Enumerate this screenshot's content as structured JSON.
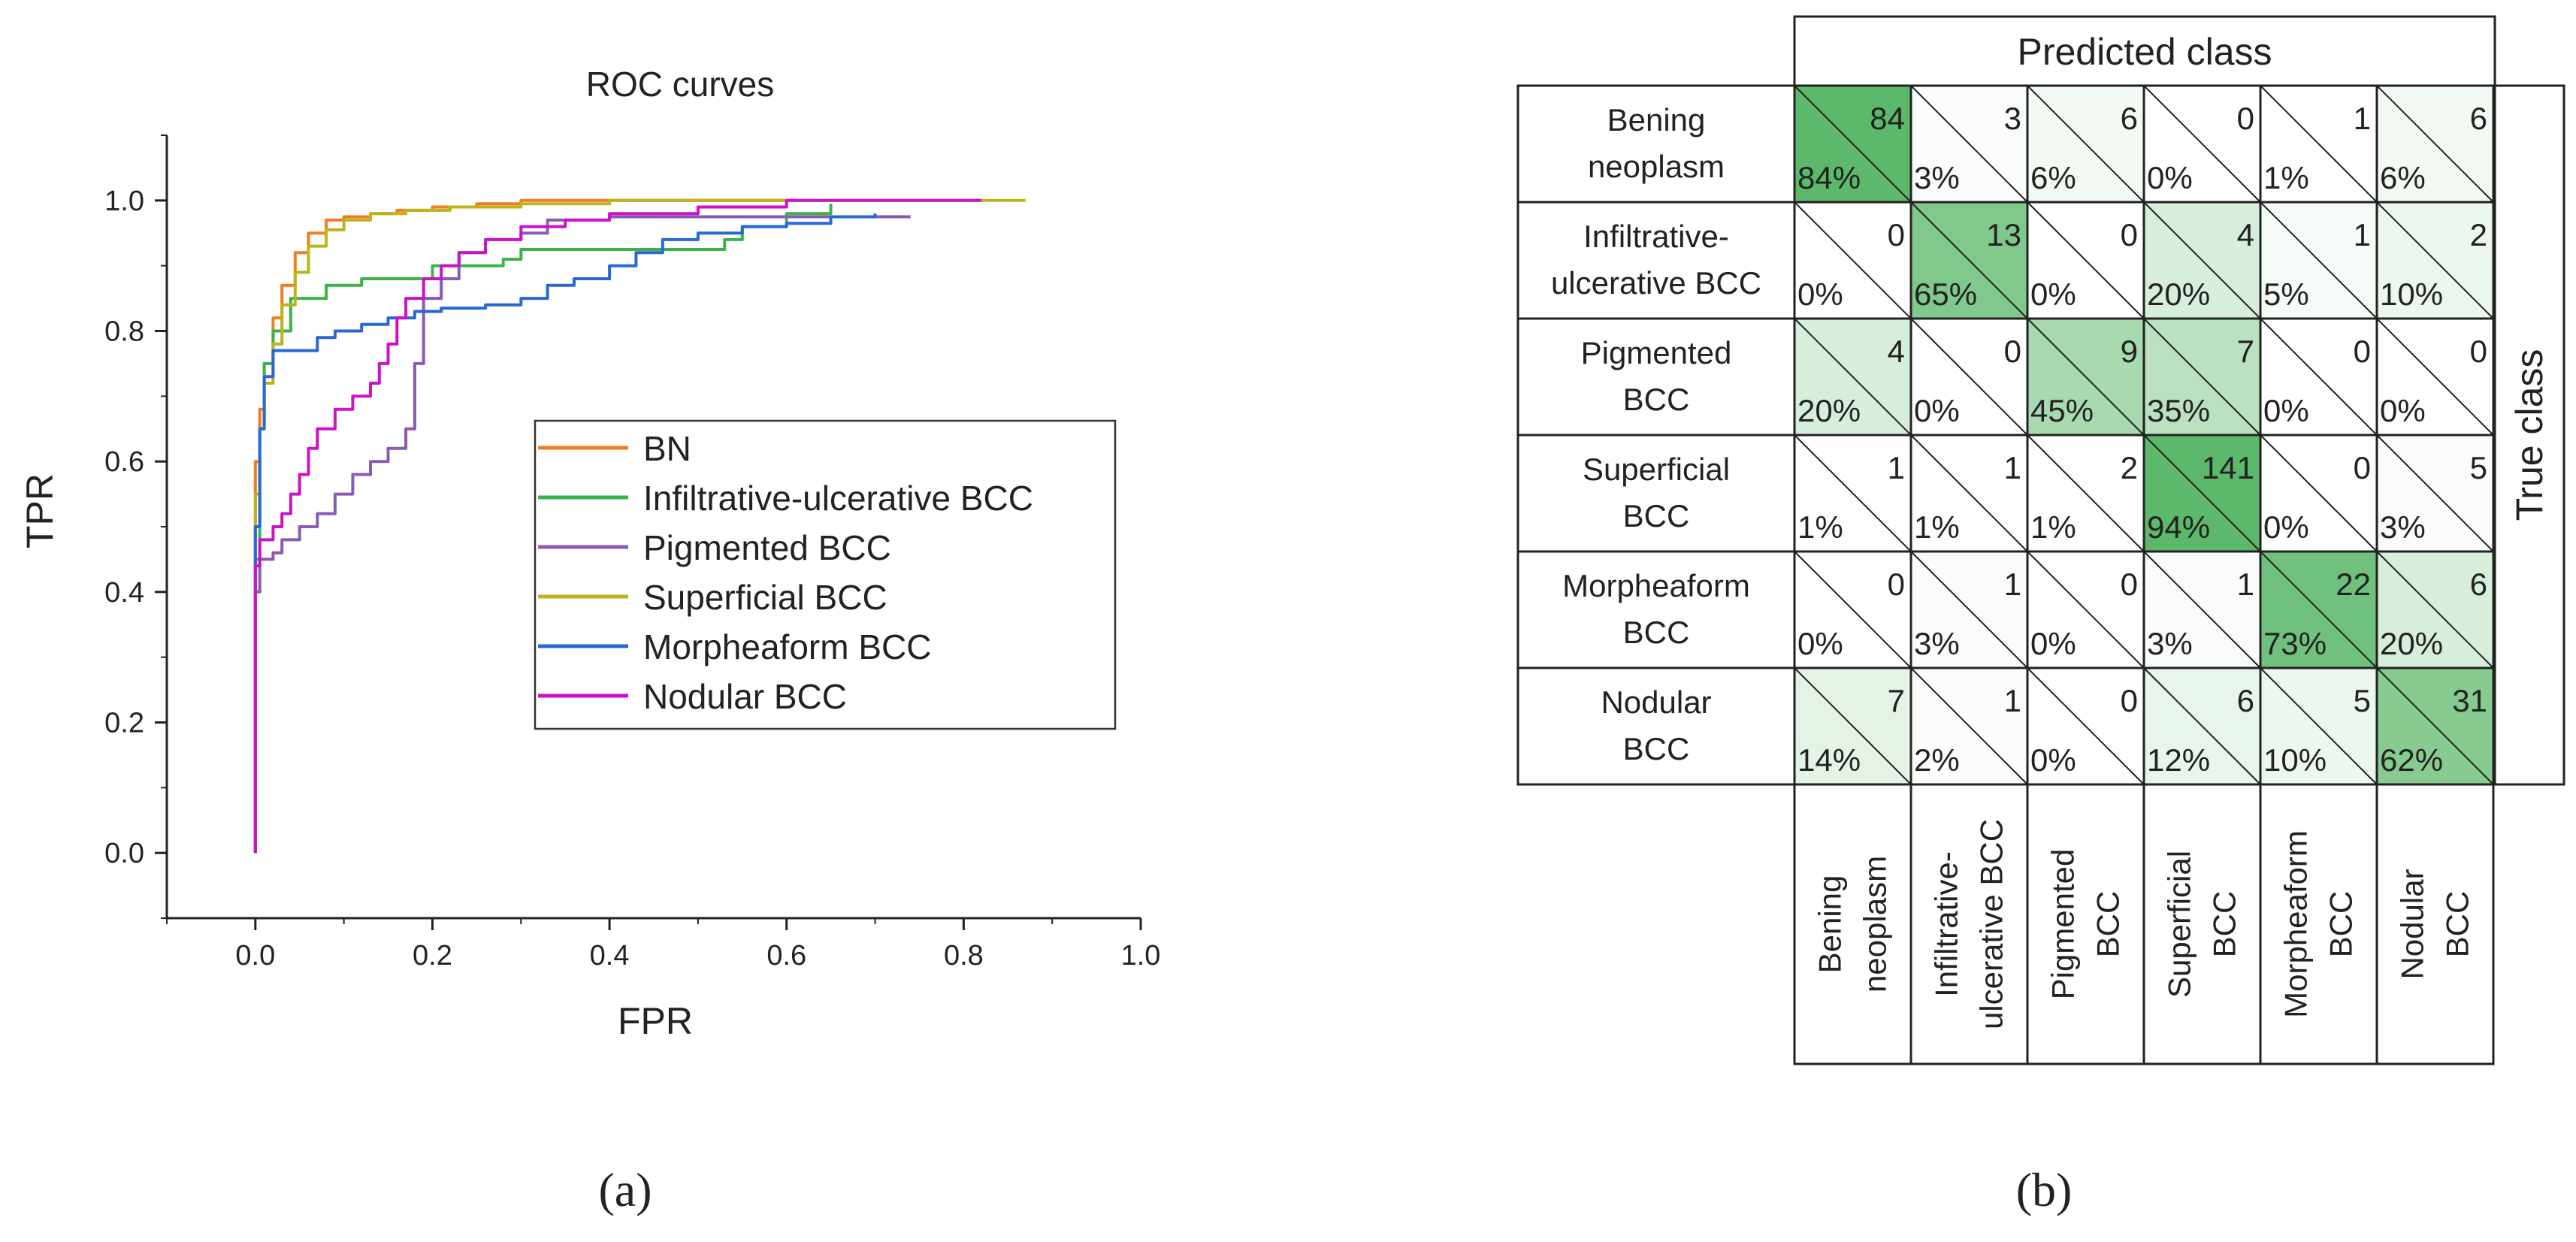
{
  "panel_a": {
    "label": "(a)",
    "chart_data": {
      "type": "line",
      "title": "ROC curves",
      "xlabel": "FPR",
      "ylabel": "TPR",
      "xlim": [
        -0.1,
        1.0
      ],
      "ylim": [
        -0.1,
        1.1
      ],
      "xticks": [
        0.0,
        0.2,
        0.4,
        0.6,
        0.8,
        1.0
      ],
      "xtick_labels": [
        "0.0",
        "0.2",
        "0.4",
        "0.6",
        "0.8",
        "1.0"
      ],
      "yticks": [
        0.0,
        0.2,
        0.4,
        0.6,
        0.8,
        1.0
      ],
      "ytick_labels": [
        "0.0",
        "0.2",
        "0.4",
        "0.6",
        "0.8",
        "1.0"
      ],
      "legend_position": "center-right",
      "series": [
        {
          "name": "BN",
          "color": "#f47c20",
          "points": [
            [
              0,
              0
            ],
            [
              0,
              0.6
            ],
            [
              0.005,
              0.68
            ],
            [
              0.01,
              0.75
            ],
            [
              0.02,
              0.82
            ],
            [
              0.03,
              0.87
            ],
            [
              0.045,
              0.92
            ],
            [
              0.06,
              0.95
            ],
            [
              0.08,
              0.97
            ],
            [
              0.1,
              0.975
            ],
            [
              0.13,
              0.98
            ],
            [
              0.16,
              0.985
            ],
            [
              0.2,
              0.99
            ],
            [
              0.25,
              0.995
            ],
            [
              0.3,
              1.0
            ],
            [
              0.6,
              1.0
            ]
          ]
        },
        {
          "name": "Infiltrative-ulcerative  BCC",
          "color": "#3cb34a",
          "points": [
            [
              0,
              0
            ],
            [
              0,
              0.45
            ],
            [
              0.005,
              0.65
            ],
            [
              0.01,
              0.75
            ],
            [
              0.02,
              0.8
            ],
            [
              0.04,
              0.85
            ],
            [
              0.07,
              0.85
            ],
            [
              0.08,
              0.87
            ],
            [
              0.1,
              0.87
            ],
            [
              0.12,
              0.88
            ],
            [
              0.17,
              0.88
            ],
            [
              0.2,
              0.9
            ],
            [
              0.26,
              0.9
            ],
            [
              0.28,
              0.91
            ],
            [
              0.3,
              0.925
            ],
            [
              0.41,
              0.925
            ],
            [
              0.5,
              0.925
            ],
            [
              0.53,
              0.94
            ],
            [
              0.55,
              0.96
            ],
            [
              0.6,
              0.98
            ],
            [
              0.65,
              0.995
            ]
          ]
        },
        {
          "name": "Pigmented  BCC",
          "color": "#8a5bb5",
          "points": [
            [
              0,
              0
            ],
            [
              0,
              0.4
            ],
            [
              0.005,
              0.45
            ],
            [
              0.02,
              0.46
            ],
            [
              0.03,
              0.48
            ],
            [
              0.05,
              0.5
            ],
            [
              0.07,
              0.52
            ],
            [
              0.09,
              0.55
            ],
            [
              0.11,
              0.58
            ],
            [
              0.13,
              0.6
            ],
            [
              0.15,
              0.62
            ],
            [
              0.17,
              0.65
            ],
            [
              0.18,
              0.75
            ],
            [
              0.19,
              0.85
            ],
            [
              0.21,
              0.88
            ],
            [
              0.23,
              0.92
            ],
            [
              0.26,
              0.94
            ],
            [
              0.3,
              0.95
            ],
            [
              0.33,
              0.97
            ],
            [
              0.4,
              0.975
            ],
            [
              0.5,
              0.975
            ],
            [
              0.6,
              0.975
            ],
            [
              0.74,
              0.975
            ]
          ]
        },
        {
          "name": "Superficial BCC",
          "color": "#bcb41a",
          "points": [
            [
              0,
              0
            ],
            [
              0,
              0.55
            ],
            [
              0.005,
              0.65
            ],
            [
              0.01,
              0.72
            ],
            [
              0.02,
              0.78
            ],
            [
              0.03,
              0.84
            ],
            [
              0.045,
              0.89
            ],
            [
              0.06,
              0.93
            ],
            [
              0.08,
              0.955
            ],
            [
              0.1,
              0.97
            ],
            [
              0.13,
              0.98
            ],
            [
              0.17,
              0.985
            ],
            [
              0.22,
              0.99
            ],
            [
              0.3,
              0.995
            ],
            [
              0.4,
              1.0
            ],
            [
              0.87,
              1.0
            ]
          ]
        },
        {
          "name": "Morpheaform BCC",
          "color": "#2a67d6",
          "points": [
            [
              0,
              0
            ],
            [
              0,
              0.5
            ],
            [
              0.005,
              0.65
            ],
            [
              0.01,
              0.73
            ],
            [
              0.02,
              0.77
            ],
            [
              0.05,
              0.77
            ],
            [
              0.07,
              0.79
            ],
            [
              0.09,
              0.8
            ],
            [
              0.12,
              0.81
            ],
            [
              0.15,
              0.82
            ],
            [
              0.18,
              0.83
            ],
            [
              0.21,
              0.835
            ],
            [
              0.26,
              0.84
            ],
            [
              0.3,
              0.85
            ],
            [
              0.33,
              0.87
            ],
            [
              0.36,
              0.88
            ],
            [
              0.4,
              0.9
            ],
            [
              0.43,
              0.92
            ],
            [
              0.46,
              0.94
            ],
            [
              0.5,
              0.95
            ],
            [
              0.55,
              0.96
            ],
            [
              0.6,
              0.965
            ],
            [
              0.65,
              0.975
            ],
            [
              0.7,
              0.98
            ]
          ]
        },
        {
          "name": "Nodular BCC",
          "color": "#cc12c8",
          "points": [
            [
              0,
              0
            ],
            [
              0,
              0.44
            ],
            [
              0.005,
              0.48
            ],
            [
              0.02,
              0.5
            ],
            [
              0.03,
              0.52
            ],
            [
              0.04,
              0.55
            ],
            [
              0.05,
              0.58
            ],
            [
              0.06,
              0.62
            ],
            [
              0.07,
              0.65
            ],
            [
              0.09,
              0.68
            ],
            [
              0.11,
              0.7
            ],
            [
              0.13,
              0.72
            ],
            [
              0.14,
              0.75
            ],
            [
              0.15,
              0.78
            ],
            [
              0.16,
              0.82
            ],
            [
              0.17,
              0.85
            ],
            [
              0.19,
              0.88
            ],
            [
              0.21,
              0.9
            ],
            [
              0.23,
              0.92
            ],
            [
              0.26,
              0.94
            ],
            [
              0.3,
              0.96
            ],
            [
              0.35,
              0.97
            ],
            [
              0.4,
              0.98
            ],
            [
              0.5,
              0.99
            ],
            [
              0.6,
              1.0
            ],
            [
              0.82,
              1.0
            ]
          ]
        }
      ]
    }
  },
  "panel_b": {
    "label": "(b)",
    "chart_data": {
      "type": "heatmap",
      "title": "Predicted class",
      "ylabel": "True class",
      "row_labels": [
        [
          "Bening",
          "neoplasm"
        ],
        [
          "Infiltrative-",
          "ulcerative BCC"
        ],
        [
          "Pigmented",
          "BCC"
        ],
        [
          "Superficial",
          "BCC"
        ],
        [
          "Morpheaform",
          "BCC"
        ],
        [
          "Nodular",
          "BCC"
        ]
      ],
      "col_labels": [
        [
          "Bening",
          "neoplasm"
        ],
        [
          "Infiltrative-",
          "ulcerative BCC"
        ],
        [
          "Pigmented",
          "BCC"
        ],
        [
          "Superficial",
          "BCC"
        ],
        [
          "Morpheaform",
          "BCC"
        ],
        [
          "Nodular",
          "BCC"
        ]
      ],
      "counts": [
        [
          84,
          3,
          6,
          0,
          1,
          6
        ],
        [
          0,
          13,
          0,
          4,
          1,
          2
        ],
        [
          4,
          0,
          9,
          7,
          0,
          0
        ],
        [
          1,
          1,
          2,
          141,
          0,
          5
        ],
        [
          0,
          1,
          0,
          1,
          22,
          6
        ],
        [
          7,
          1,
          0,
          6,
          5,
          31
        ]
      ],
      "percents": [
        [
          "84%",
          "3%",
          "6%",
          "0%",
          "1%",
          "6%"
        ],
        [
          "0%",
          "65%",
          "0%",
          "20%",
          "5%",
          "10%"
        ],
        [
          "20%",
          "0%",
          "45%",
          "35%",
          "0%",
          "0%"
        ],
        [
          "1%",
          "1%",
          "1%",
          "94%",
          "0%",
          "3%"
        ],
        [
          "0%",
          "3%",
          "0%",
          "3%",
          "73%",
          "20%"
        ],
        [
          "14%",
          "2%",
          "0%",
          "12%",
          "10%",
          "62%"
        ]
      ],
      "percent_values": [
        [
          84,
          3,
          6,
          0,
          1,
          6
        ],
        [
          0,
          65,
          0,
          20,
          5,
          10
        ],
        [
          20,
          0,
          45,
          35,
          0,
          0
        ],
        [
          1,
          1,
          1,
          94,
          0,
          3
        ],
        [
          0,
          3,
          0,
          3,
          73,
          20
        ],
        [
          14,
          2,
          0,
          12,
          10,
          62
        ]
      ],
      "color_low": "#ffffff",
      "color_high": "#5cb86a"
    }
  }
}
